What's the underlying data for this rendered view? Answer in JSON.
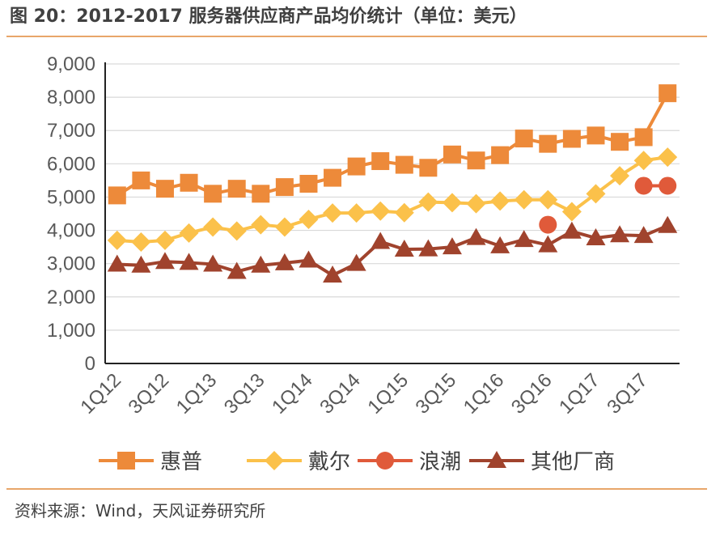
{
  "header": {
    "title": "图 20：2012-2017 服务器供应商产品均价统计（单位：美元）"
  },
  "footer": {
    "source": "资料来源：Wind，天风证券研究所"
  },
  "chart_data": {
    "type": "line",
    "title": "",
    "xlabel": "",
    "ylabel": "",
    "ylim": [
      0,
      9000
    ],
    "yticks": [
      "0",
      "1,000",
      "2,000",
      "3,000",
      "4,000",
      "5,000",
      "6,000",
      "7,000",
      "8,000",
      "9,000"
    ],
    "grid": true,
    "legend_position": "bottom",
    "categories": [
      "1Q12",
      "2Q12",
      "3Q12",
      "4Q12",
      "1Q13",
      "2Q13",
      "3Q13",
      "4Q13",
      "1Q14",
      "2Q14",
      "3Q14",
      "4Q14",
      "1Q15",
      "2Q15",
      "3Q15",
      "4Q15",
      "1Q16",
      "2Q16",
      "3Q16",
      "4Q16",
      "1Q17",
      "2Q17",
      "3Q17",
      "4Q17"
    ],
    "tick_labels": [
      "1Q12",
      "3Q12",
      "1Q13",
      "3Q13",
      "1Q14",
      "3Q14",
      "1Q15",
      "3Q15",
      "1Q16",
      "3Q16",
      "1Q17",
      "3Q17"
    ],
    "series": [
      {
        "name": "惠普",
        "color": "#ed8a3a",
        "marker": "square",
        "values": [
          5050,
          5500,
          5250,
          5430,
          5100,
          5250,
          5100,
          5300,
          5400,
          5580,
          5920,
          6080,
          5970,
          5880,
          6280,
          6100,
          6260,
          6760,
          6600,
          6750,
          6850,
          6660,
          6800,
          8120
        ]
      },
      {
        "name": "戴尔",
        "color": "#fbc14a",
        "marker": "diamond",
        "values": [
          3700,
          3650,
          3700,
          3920,
          4100,
          3980,
          4170,
          4100,
          4330,
          4520,
          4520,
          4580,
          4530,
          4850,
          4830,
          4800,
          4880,
          4920,
          4920,
          4560,
          5100,
          5640,
          6100,
          6200
        ]
      },
      {
        "name": "浪潮",
        "color": "#e05a3a",
        "marker": "circle",
        "values": [
          null,
          null,
          null,
          null,
          null,
          null,
          null,
          null,
          null,
          null,
          null,
          null,
          null,
          null,
          null,
          null,
          null,
          null,
          4170,
          null,
          null,
          null,
          5340,
          5340
        ]
      },
      {
        "name": "其他厂商",
        "color": "#a0432d",
        "marker": "triangle",
        "values": [
          2980,
          2950,
          3060,
          3030,
          2980,
          2760,
          2950,
          3020,
          3100,
          2650,
          3000,
          3660,
          3430,
          3440,
          3500,
          3780,
          3530,
          3720,
          3560,
          3970,
          3770,
          3860,
          3840,
          4140
        ]
      }
    ]
  }
}
